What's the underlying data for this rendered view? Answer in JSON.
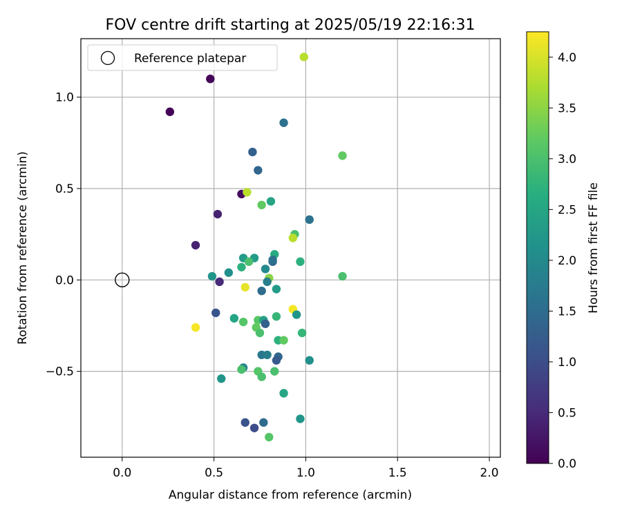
{
  "chart_data": {
    "type": "scatter",
    "title": "FOV centre drift starting at 2025/05/19 22:16:31",
    "xlabel": "Angular distance from reference (arcmin)",
    "ylabel": "Rotation from reference (arcmin)",
    "xlim": [
      -0.225,
      2.06
    ],
    "ylim": [
      -0.97,
      1.32
    ],
    "xticks": [
      0.0,
      0.5,
      1.0,
      1.5,
      2.0
    ],
    "xtick_labels": [
      "0.0",
      "0.5",
      "1.0",
      "1.5",
      "2.0"
    ],
    "yticks": [
      -0.5,
      0.0,
      0.5,
      1.0
    ],
    "ytick_labels": [
      "−0.5",
      "0.0",
      "0.5",
      "1.0"
    ],
    "grid": true,
    "legend": {
      "placement": "top-left",
      "entries": [
        "Reference platepar"
      ]
    },
    "reference_point": {
      "x": 0.0,
      "y": 0.0,
      "label": "Reference platepar"
    },
    "colorbar": {
      "label": "Hours from first FF file",
      "colormap": "viridis",
      "range": [
        0.0,
        4.25
      ],
      "ticks": [
        0.0,
        0.5,
        1.0,
        1.5,
        2.0,
        2.5,
        3.0,
        3.5,
        4.0
      ],
      "tick_labels": [
        "0.0",
        "0.5",
        "1.0",
        "1.5",
        "2.0",
        "2.5",
        "3.0",
        "3.5",
        "4.0"
      ]
    },
    "points": [
      {
        "x": 0.48,
        "y": 1.1,
        "c": 0.05
      },
      {
        "x": 0.26,
        "y": 0.92,
        "c": 0.05
      },
      {
        "x": 0.65,
        "y": 0.47,
        "c": 0.15
      },
      {
        "x": 0.52,
        "y": 0.36,
        "c": 0.4
      },
      {
        "x": 0.4,
        "y": 0.19,
        "c": 0.4
      },
      {
        "x": 0.53,
        "y": -0.01,
        "c": 0.5
      },
      {
        "x": 0.99,
        "y": 1.22,
        "c": 3.8
      },
      {
        "x": 0.88,
        "y": 0.86,
        "c": 1.6
      },
      {
        "x": 0.71,
        "y": 0.7,
        "c": 1.3
      },
      {
        "x": 1.2,
        "y": 0.68,
        "c": 3.2
      },
      {
        "x": 0.74,
        "y": 0.6,
        "c": 1.4
      },
      {
        "x": 0.68,
        "y": 0.48,
        "c": 3.8
      },
      {
        "x": 0.76,
        "y": 0.41,
        "c": 3.2
      },
      {
        "x": 0.81,
        "y": 0.43,
        "c": 2.5
      },
      {
        "x": 1.02,
        "y": 0.33,
        "c": 1.6
      },
      {
        "x": 0.94,
        "y": 0.25,
        "c": 3.0
      },
      {
        "x": 0.93,
        "y": 0.23,
        "c": 3.8
      },
      {
        "x": 0.83,
        "y": 0.14,
        "c": 2.6
      },
      {
        "x": 0.66,
        "y": 0.12,
        "c": 2.3
      },
      {
        "x": 0.72,
        "y": 0.12,
        "c": 2.3
      },
      {
        "x": 0.97,
        "y": 0.1,
        "c": 2.7
      },
      {
        "x": 0.82,
        "y": 0.1,
        "c": 1.5
      },
      {
        "x": 0.82,
        "y": 0.11,
        "c": 1.6
      },
      {
        "x": 0.69,
        "y": 0.1,
        "c": 3.0
      },
      {
        "x": 0.65,
        "y": 0.07,
        "c": 2.7
      },
      {
        "x": 0.78,
        "y": 0.06,
        "c": 2.0
      },
      {
        "x": 0.58,
        "y": 0.04,
        "c": 2.1
      },
      {
        "x": 0.49,
        "y": 0.02,
        "c": 2.2
      },
      {
        "x": 0.8,
        "y": 0.01,
        "c": 3.5
      },
      {
        "x": 1.2,
        "y": 0.02,
        "c": 3.0
      },
      {
        "x": 0.79,
        "y": -0.01,
        "c": 1.8
      },
      {
        "x": 0.67,
        "y": -0.04,
        "c": 4.1
      },
      {
        "x": 0.76,
        "y": -0.06,
        "c": 1.5
      },
      {
        "x": 0.84,
        "y": -0.05,
        "c": 2.3
      },
      {
        "x": 0.93,
        "y": -0.16,
        "c": 4.2
      },
      {
        "x": 0.51,
        "y": -0.18,
        "c": 1.1
      },
      {
        "x": 0.95,
        "y": -0.19,
        "c": 2.2
      },
      {
        "x": 0.84,
        "y": -0.2,
        "c": 2.8
      },
      {
        "x": 0.61,
        "y": -0.21,
        "c": 2.5
      },
      {
        "x": 0.66,
        "y": -0.23,
        "c": 3.1
      },
      {
        "x": 0.74,
        "y": -0.22,
        "c": 3.1
      },
      {
        "x": 0.77,
        "y": -0.22,
        "c": 2.4
      },
      {
        "x": 0.78,
        "y": -0.24,
        "c": 1.3
      },
      {
        "x": 0.4,
        "y": -0.26,
        "c": 4.2
      },
      {
        "x": 0.73,
        "y": -0.26,
        "c": 3.2
      },
      {
        "x": 0.75,
        "y": -0.29,
        "c": 3.0
      },
      {
        "x": 0.98,
        "y": -0.29,
        "c": 2.8
      },
      {
        "x": 0.85,
        "y": -0.33,
        "c": 2.7
      },
      {
        "x": 0.88,
        "y": -0.33,
        "c": 3.2
      },
      {
        "x": 0.76,
        "y": -0.41,
        "c": 1.7
      },
      {
        "x": 0.79,
        "y": -0.41,
        "c": 1.8
      },
      {
        "x": 0.85,
        "y": -0.42,
        "c": 1.4
      },
      {
        "x": 0.84,
        "y": -0.44,
        "c": 1.2
      },
      {
        "x": 1.02,
        "y": -0.44,
        "c": 2.1
      },
      {
        "x": 0.66,
        "y": -0.48,
        "c": 1.9
      },
      {
        "x": 0.65,
        "y": -0.49,
        "c": 3.0
      },
      {
        "x": 0.74,
        "y": -0.5,
        "c": 3.1
      },
      {
        "x": 0.83,
        "y": -0.5,
        "c": 3.0
      },
      {
        "x": 0.76,
        "y": -0.53,
        "c": 3.0
      },
      {
        "x": 0.54,
        "y": -0.54,
        "c": 2.2
      },
      {
        "x": 0.88,
        "y": -0.62,
        "c": 2.5
      },
      {
        "x": 0.97,
        "y": -0.76,
        "c": 2.2
      },
      {
        "x": 0.67,
        "y": -0.78,
        "c": 1.1
      },
      {
        "x": 0.77,
        "y": -0.78,
        "c": 1.5
      },
      {
        "x": 0.72,
        "y": -0.81,
        "c": 1.0
      },
      {
        "x": 0.8,
        "y": -0.86,
        "c": 3.1
      }
    ]
  }
}
